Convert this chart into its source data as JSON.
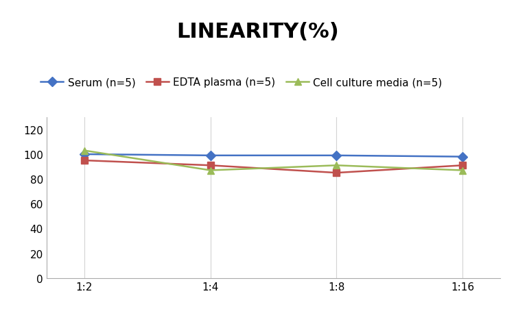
{
  "title": "LINEARITY(%)",
  "x_labels": [
    "1:2",
    "1:4",
    "1:8",
    "1:16"
  ],
  "series": [
    {
      "label": "Serum (n=5)",
      "color": "#4472C4",
      "marker": "D",
      "values": [
        100,
        99,
        99,
        98
      ]
    },
    {
      "label": "EDTA plasma (n=5)",
      "color": "#C0504D",
      "marker": "s",
      "values": [
        95,
        91,
        85,
        91
      ]
    },
    {
      "label": "Cell culture media (n=5)",
      "color": "#9BBB59",
      "marker": "^",
      "values": [
        103,
        87,
        91,
        87
      ]
    }
  ],
  "ylim": [
    0,
    130
  ],
  "yticks": [
    0,
    20,
    40,
    60,
    80,
    100,
    120
  ],
  "background_color": "#ffffff",
  "title_fontsize": 22,
  "legend_fontsize": 11,
  "tick_fontsize": 11,
  "grid_color": "#d3d3d3"
}
